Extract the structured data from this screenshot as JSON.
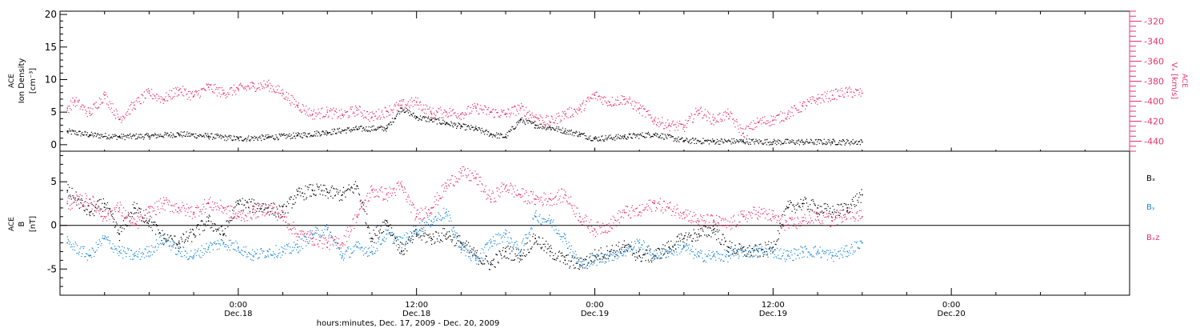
{
  "colors": {
    "black": "#000000",
    "magenta": "#e8336b",
    "blue": "#1a87d8"
  },
  "x_axis": {
    "range_hours": [
      -12,
      60
    ],
    "ticks": [
      {
        "hour": 0,
        "time": "0:00",
        "date": "Dec.18"
      },
      {
        "hour": 12,
        "time": "12:00",
        "date": "Dec.18"
      },
      {
        "hour": 24,
        "time": "0:00",
        "date": "Dec.19"
      },
      {
        "hour": 36,
        "time": "12:00",
        "date": "Dec.19"
      },
      {
        "hour": 48,
        "time": "0:00",
        "date": "Dec.20"
      }
    ],
    "caption": "hours:minutes, Dec. 17, 2009 - Dec. 20, 2009"
  },
  "chart_data": [
    {
      "type": "scatter",
      "panel": "top",
      "left_axis": {
        "label_1": "ACE",
        "label_2": "Ion Density",
        "label_3": "[cm⁻³]",
        "ylim": [
          -1,
          20.5
        ],
        "ticks": [
          "0",
          "5",
          "10",
          "15",
          "20"
        ]
      },
      "right_axis": {
        "label_1": "ACE",
        "label_2": "Vₓ [km/s]",
        "ylim": [
          -450,
          -310
        ],
        "ticks": [
          "-320",
          "-340",
          "-360",
          "-380",
          "-400",
          "-420",
          "-440"
        ]
      },
      "series": [
        {
          "name": "",
          "color": "black",
          "axis": "left",
          "x": [
            -11.5,
            -10,
            -8,
            -6,
            -4,
            -2,
            0,
            2,
            4,
            6,
            8,
            10,
            11,
            12,
            13,
            14,
            15,
            16,
            17,
            18,
            19,
            20,
            21,
            22,
            23,
            24,
            26,
            28,
            30,
            32,
            34,
            36,
            38,
            40,
            42
          ],
          "y": [
            2.0,
            1.5,
            1.2,
            1.3,
            1.6,
            1.3,
            0.9,
            1.1,
            1.4,
            1.9,
            2.4,
            2.5,
            5.6,
            4.2,
            3.8,
            3.3,
            2.8,
            2.4,
            1.6,
            1.2,
            3.8,
            3.0,
            2.6,
            2.1,
            1.6,
            0.9,
            1.2,
            1.6,
            0.6,
            0.5,
            0.5,
            0.4,
            0.4,
            0.4,
            0.4
          ]
        },
        {
          "name": "",
          "color": "magenta",
          "axis": "right",
          "x": [
            -11.5,
            -11,
            -10,
            -9,
            -8,
            -7,
            -6,
            -5,
            -4,
            -3,
            -2,
            -1,
            0,
            1,
            2,
            3,
            4,
            5,
            6,
            7,
            8,
            9,
            10,
            11,
            12,
            13,
            14,
            15,
            16,
            17,
            18,
            19,
            20,
            21,
            22,
            23,
            24,
            25,
            26,
            27,
            28,
            29,
            30,
            31,
            32,
            33,
            34,
            35,
            36,
            37,
            38,
            39,
            40,
            41,
            42
          ],
          "y": [
            -407,
            -400,
            -412,
            -394,
            -418,
            -404,
            -392,
            -398,
            -389,
            -395,
            -386,
            -392,
            -388,
            -385,
            -384,
            -392,
            -404,
            -413,
            -411,
            -414,
            -409,
            -416,
            -410,
            -404,
            -401,
            -412,
            -411,
            -413,
            -407,
            -411,
            -413,
            -407,
            -416,
            -421,
            -413,
            -408,
            -394,
            -401,
            -398,
            -407,
            -419,
            -424,
            -426,
            -409,
            -419,
            -413,
            -432,
            -421,
            -419,
            -413,
            -405,
            -398,
            -394,
            -391,
            -392
          ]
        }
      ]
    },
    {
      "type": "scatter",
      "panel": "bottom",
      "left_axis": {
        "label_1": "ACE",
        "label_2": "B",
        "label_3": "[nT]",
        "ylim": [
          -8,
          8.5
        ],
        "ticks": [
          "-5",
          "0",
          "5"
        ]
      },
      "series": [
        {
          "name": "Bₓ",
          "color": "black",
          "x": [
            -11.5,
            -10,
            -9,
            -8,
            -7,
            -6,
            -5,
            -4,
            -3,
            -2,
            -1,
            0,
            1,
            2,
            3,
            4,
            5,
            6,
            7,
            8,
            9,
            10,
            11,
            12,
            13,
            14,
            15,
            16,
            17,
            18,
            19,
            20,
            21,
            22,
            23,
            24,
            25,
            26,
            27,
            28,
            29,
            30,
            31,
            32,
            33,
            34,
            35,
            36,
            37,
            38,
            39,
            40,
            41,
            42
          ],
          "y": [
            4.0,
            1.5,
            2.5,
            -1.0,
            2.0,
            0.5,
            -1.5,
            -2.0,
            -1.0,
            0.5,
            -1.0,
            2.5,
            2.2,
            2.0,
            1.5,
            3.5,
            4.0,
            3.8,
            3.5,
            4.5,
            -1.5,
            0.5,
            -3.0,
            -1.0,
            -1.5,
            -1.0,
            -2.0,
            -3.5,
            -4.5,
            -3.0,
            -3.5,
            -1.5,
            -3.0,
            -4.0,
            -4.5,
            -3.5,
            -3.0,
            -2.5,
            -3.5,
            -3.5,
            -2.5,
            -1.5,
            -1.0,
            -0.5,
            -2.5,
            -3.0,
            -3.0,
            -2.5,
            2.0,
            2.5,
            2.0,
            1.5,
            2.0,
            3.5
          ]
        },
        {
          "name": "Bᵧ",
          "color": "blue",
          "x": [
            -11.5,
            -10,
            -9,
            -8,
            -7,
            -6,
            -5,
            -4,
            -3,
            -2,
            -1,
            0,
            1,
            2,
            3,
            4,
            5,
            6,
            7,
            8,
            9,
            10,
            11,
            12,
            13,
            14,
            15,
            16,
            17,
            18,
            19,
            20,
            21,
            22,
            23,
            24,
            25,
            26,
            27,
            28,
            29,
            30,
            31,
            32,
            33,
            34,
            35,
            36,
            37,
            38,
            39,
            40,
            41,
            42
          ],
          "y": [
            -2.0,
            -3.5,
            -1.5,
            -3.0,
            -3.5,
            -3.0,
            -1.5,
            -3.0,
            -3.5,
            -2.5,
            -2.0,
            -2.5,
            -3.5,
            -3.0,
            -3.0,
            -2.5,
            -1.0,
            -0.5,
            -3.5,
            -2.5,
            -3.0,
            -1.0,
            -2.0,
            -0.5,
            0.5,
            1.5,
            -2.5,
            -4.0,
            -2.0,
            -1.0,
            -3.0,
            1.0,
            0.5,
            -1.5,
            -4.5,
            -4.0,
            -3.5,
            -3.0,
            -2.0,
            -3.5,
            -3.0,
            -2.5,
            -3.5,
            -3.5,
            -3.5,
            -3.0,
            -3.0,
            -3.0,
            -3.5,
            -3.0,
            -3.0,
            -3.5,
            -3.0,
            -2.0
          ]
        },
        {
          "name": "Bₓz",
          "color": "magenta",
          "x": [
            -11.5,
            -10,
            -9,
            -8,
            -7,
            -6,
            -5,
            -4,
            -3,
            -2,
            -1,
            0,
            1,
            2,
            3,
            4,
            5,
            6,
            7,
            8,
            9,
            10,
            11,
            12,
            13,
            14,
            15,
            16,
            17,
            18,
            19,
            20,
            21,
            22,
            23,
            24,
            25,
            26,
            27,
            28,
            29,
            30,
            31,
            32,
            33,
            34,
            35,
            36,
            37,
            38,
            39,
            40,
            41,
            42
          ],
          "y": [
            2.5,
            3.0,
            1.0,
            2.0,
            0.0,
            1.5,
            2.5,
            2.0,
            1.5,
            2.5,
            2.0,
            1.0,
            1.5,
            2.0,
            1.0,
            -1.0,
            -1.5,
            -2.0,
            -2.0,
            1.0,
            4.0,
            3.5,
            4.5,
            1.0,
            2.0,
            4.5,
            6.0,
            5.5,
            3.0,
            4.5,
            3.5,
            3.0,
            3.0,
            3.5,
            1.0,
            -0.5,
            0.0,
            1.5,
            1.5,
            2.5,
            2.0,
            1.5,
            0.5,
            0.5,
            0.0,
            1.0,
            1.5,
            1.0,
            0.0,
            0.5,
            1.0,
            0.5,
            1.5,
            1.0
          ]
        }
      ]
    }
  ]
}
